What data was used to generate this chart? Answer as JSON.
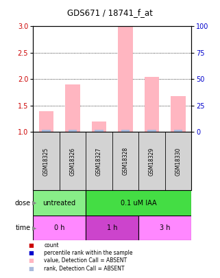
{
  "title": "GDS671 / 18741_f_at",
  "samples": [
    "GSM18325",
    "GSM18326",
    "GSM18327",
    "GSM18328",
    "GSM18329",
    "GSM18330"
  ],
  "bar_values": [
    1.4,
    1.9,
    1.2,
    3.0,
    2.05,
    1.68
  ],
  "rank_values": [
    1.0,
    1.0,
    1.0,
    1.02,
    1.0,
    1.0
  ],
  "ylim_left": [
    1.0,
    3.0
  ],
  "ylim_right": [
    0,
    100
  ],
  "yticks_left": [
    1.0,
    1.5,
    2.0,
    2.5,
    3.0
  ],
  "yticks_right": [
    0,
    25,
    50,
    75,
    100
  ],
  "bar_color_absent": "#FFB6C1",
  "rank_color_absent": "#AABBDD",
  "dose_labels": [
    {
      "label": "untreated",
      "start": 0,
      "end": 2,
      "color": "#88EE88"
    },
    {
      "label": "0.1 uM IAA",
      "start": 2,
      "end": 6,
      "color": "#44DD44"
    }
  ],
  "time_labels": [
    {
      "label": "0 h",
      "start": 0,
      "end": 2,
      "color": "#FF88FF"
    },
    {
      "label": "1 h",
      "start": 2,
      "end": 4,
      "color": "#CC44CC"
    },
    {
      "label": "3 h",
      "start": 4,
      "end": 6,
      "color": "#FF88FF"
    }
  ],
  "dose_row_label": "dose",
  "time_row_label": "time",
  "legend_items": [
    {
      "color": "#CC0000",
      "label": "count"
    },
    {
      "color": "#0000CC",
      "label": "percentile rank within the sample"
    },
    {
      "color": "#FFB6C1",
      "label": "value, Detection Call = ABSENT"
    },
    {
      "color": "#AABBDD",
      "label": "rank, Detection Call = ABSENT"
    }
  ],
  "background_color": "#ffffff",
  "sample_box_color": "#D3D3D3",
  "left_axis_color": "#CC0000",
  "right_axis_color": "#0000CC",
  "figsize": [
    3.21,
    4.05
  ],
  "dpi": 100
}
